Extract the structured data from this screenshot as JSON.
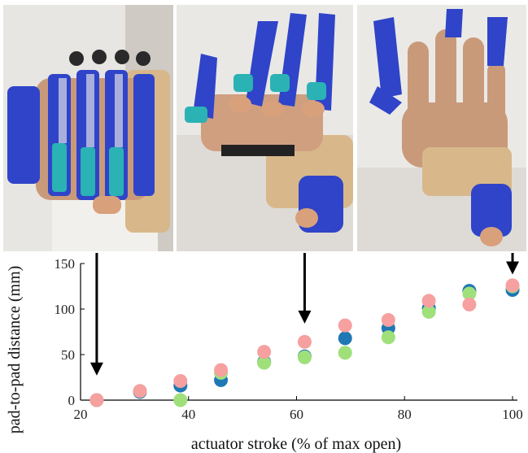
{
  "photos": [
    {
      "name": "hand-exoskeleton-photo-closed",
      "state": "closed"
    },
    {
      "name": "hand-exoskeleton-photo-half-open",
      "state": "half-open"
    },
    {
      "name": "hand-exoskeleton-photo-open",
      "state": "open"
    }
  ],
  "colors": {
    "series1": "#1f77b4",
    "series2": "#9fe07a",
    "series3": "#f6a0a0",
    "axis": "#000000",
    "arrow": "#000000",
    "glove_blue": "#2f44c8",
    "skin": "#d9a07c",
    "strap": "#d9b98a",
    "teal": "#2bb2b5"
  },
  "chart_data": {
    "type": "scatter",
    "xlabel": "actuator stroke (% of max open)",
    "ylabel": "pad-to-pad distance (mm)",
    "xlim": [
      20,
      100
    ],
    "ylim": [
      0,
      150
    ],
    "xticks": [
      20,
      40,
      60,
      80,
      100
    ],
    "yticks": [
      0,
      50,
      100,
      150
    ],
    "grid": false,
    "legend": "none",
    "series": [
      {
        "color": "#1f77b4",
        "points": [
          [
            23,
            0
          ],
          [
            31,
            9
          ],
          [
            38.5,
            16
          ],
          [
            46,
            22
          ],
          [
            54,
            42
          ],
          [
            61.5,
            48
          ],
          [
            69,
            68
          ],
          [
            77,
            79
          ],
          [
            84.5,
            101
          ],
          [
            92,
            120
          ],
          [
            100,
            121
          ]
        ]
      },
      {
        "color": "#9fe07a",
        "points": [
          [
            23,
            0
          ],
          [
            31,
            10
          ],
          [
            38.5,
            0
          ],
          [
            46,
            30
          ],
          [
            54,
            41
          ],
          [
            61.5,
            47
          ],
          [
            69,
            52
          ],
          [
            77,
            69
          ],
          [
            84.5,
            97
          ],
          [
            92,
            117
          ],
          [
            100,
            125
          ]
        ]
      },
      {
        "color": "#f6a0a0",
        "points": [
          [
            23,
            0
          ],
          [
            31,
            10
          ],
          [
            38.5,
            21
          ],
          [
            46,
            33
          ],
          [
            54,
            53
          ],
          [
            61.5,
            64
          ],
          [
            69,
            82
          ],
          [
            77,
            88
          ],
          [
            84.5,
            109
          ],
          [
            92,
            105
          ],
          [
            100,
            126
          ]
        ]
      }
    ],
    "annotations": [
      {
        "type": "arrow",
        "x": 23,
        "from_y": "photo-1",
        "to_y": 27
      },
      {
        "type": "arrow",
        "x": 61.5,
        "from_y": "photo-2",
        "to_y": 84
      },
      {
        "type": "arrow",
        "x": 100,
        "from_y": "photo-3",
        "to_y": 138
      }
    ]
  }
}
